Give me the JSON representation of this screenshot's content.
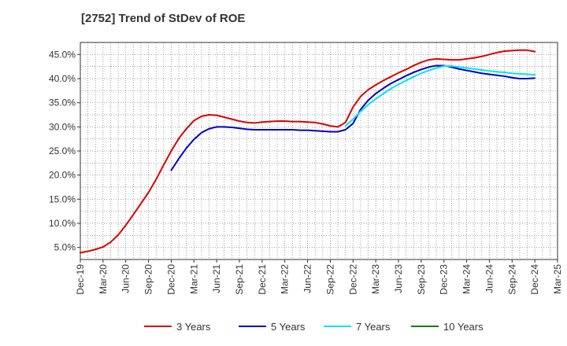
{
  "chart_data": {
    "type": "line",
    "title": "[2752]  Trend of StDev of ROE",
    "xlabel": "",
    "ylabel": "",
    "x_tick_labels": [
      "Dec-19",
      "Mar-20",
      "Jun-20",
      "Sep-20",
      "Dec-20",
      "Mar-21",
      "Jun-21",
      "Sep-21",
      "Dec-21",
      "Mar-22",
      "Jun-22",
      "Sep-22",
      "Dec-22",
      "Mar-23",
      "Jun-23",
      "Sep-23",
      "Dec-23",
      "Mar-24",
      "Jun-24",
      "Sep-24",
      "Dec-24",
      "Mar-25"
    ],
    "y_tick_labels": [
      "5.0%",
      "10.0%",
      "15.0%",
      "20.0%",
      "25.0%",
      "30.0%",
      "35.0%",
      "40.0%",
      "45.0%"
    ],
    "ylim": [
      2.5,
      47.5
    ],
    "grid": true,
    "legend_position": "bottom",
    "colors": {
      "3y": "#dd0000",
      "5y": "#0000cc",
      "7y": "#00e5ee",
      "10y": "#008000"
    },
    "series": [
      {
        "name": "3 Years",
        "color": "#dd0000",
        "points": [
          [
            "Dec-19",
            3.9
          ],
          [
            "Jan-20",
            4.2
          ],
          [
            "Feb-20",
            4.6
          ],
          [
            "Mar-20",
            5.1
          ],
          [
            "Apr-20",
            6.1
          ],
          [
            "May-20",
            7.6
          ],
          [
            "Jun-20",
            9.6
          ],
          [
            "Jul-20",
            11.8
          ],
          [
            "Aug-20",
            14.1
          ],
          [
            "Sep-20",
            16.4
          ],
          [
            "Oct-20",
            19.1
          ],
          [
            "Nov-20",
            22.1
          ],
          [
            "Dec-20",
            25.0
          ],
          [
            "Jan-21",
            27.6
          ],
          [
            "Feb-21",
            29.6
          ],
          [
            "Mar-21",
            31.3
          ],
          [
            "Apr-21",
            32.2
          ],
          [
            "May-21",
            32.5
          ],
          [
            "Jun-21",
            32.4
          ],
          [
            "Jul-21",
            32.0
          ],
          [
            "Aug-21",
            31.6
          ],
          [
            "Sep-21",
            31.2
          ],
          [
            "Oct-21",
            30.9
          ],
          [
            "Nov-21",
            30.8
          ],
          [
            "Dec-21",
            31.0
          ],
          [
            "Jan-22",
            31.1
          ],
          [
            "Feb-22",
            31.2
          ],
          [
            "Mar-22",
            31.2
          ],
          [
            "Apr-22",
            31.1
          ],
          [
            "May-22",
            31.1
          ],
          [
            "Jun-22",
            31.0
          ],
          [
            "Jul-22",
            30.9
          ],
          [
            "Aug-22",
            30.6
          ],
          [
            "Sep-22",
            30.2
          ],
          [
            "Oct-22",
            30.0
          ],
          [
            "Nov-22",
            30.9
          ],
          [
            "Dec-22",
            34.1
          ],
          [
            "Jan-23",
            36.3
          ],
          [
            "Feb-23",
            37.7
          ],
          [
            "Mar-23",
            38.7
          ],
          [
            "Apr-23",
            39.6
          ],
          [
            "May-23",
            40.4
          ],
          [
            "Jun-23",
            41.2
          ],
          [
            "Jul-23",
            41.9
          ],
          [
            "Aug-23",
            42.7
          ],
          [
            "Sep-23",
            43.4
          ],
          [
            "Oct-23",
            43.9
          ],
          [
            "Nov-23",
            44.1
          ],
          [
            "Dec-23",
            44.0
          ],
          [
            "Jan-24",
            43.9
          ],
          [
            "Feb-24",
            43.9
          ],
          [
            "Mar-24",
            44.1
          ],
          [
            "Apr-24",
            44.3
          ],
          [
            "May-24",
            44.6
          ],
          [
            "Jun-24",
            45.0
          ],
          [
            "Jul-24",
            45.4
          ],
          [
            "Aug-24",
            45.7
          ],
          [
            "Sep-24",
            45.8
          ],
          [
            "Oct-24",
            45.9
          ],
          [
            "Nov-24",
            45.9
          ],
          [
            "Dec-24",
            45.6
          ]
        ]
      },
      {
        "name": "5 Years",
        "color": "#0000cc",
        "points": [
          [
            "Dec-20",
            21.0
          ],
          [
            "Jan-21",
            23.4
          ],
          [
            "Feb-21",
            25.6
          ],
          [
            "Mar-21",
            27.4
          ],
          [
            "Apr-21",
            28.8
          ],
          [
            "May-21",
            29.6
          ],
          [
            "Jun-21",
            30.0
          ],
          [
            "Jul-21",
            30.0
          ],
          [
            "Aug-21",
            29.9
          ],
          [
            "Sep-21",
            29.7
          ],
          [
            "Oct-21",
            29.5
          ],
          [
            "Nov-21",
            29.4
          ],
          [
            "Dec-21",
            29.4
          ],
          [
            "Jan-22",
            29.4
          ],
          [
            "Feb-22",
            29.4
          ],
          [
            "Mar-22",
            29.4
          ],
          [
            "Apr-22",
            29.4
          ],
          [
            "May-22",
            29.3
          ],
          [
            "Jun-22",
            29.3
          ],
          [
            "Jul-22",
            29.2
          ],
          [
            "Aug-22",
            29.1
          ],
          [
            "Sep-22",
            29.0
          ],
          [
            "Oct-22",
            29.0
          ],
          [
            "Nov-22",
            29.4
          ],
          [
            "Dec-22",
            30.7
          ],
          [
            "Jan-23",
            33.6
          ],
          [
            "Feb-23",
            35.5
          ],
          [
            "Mar-23",
            36.9
          ],
          [
            "Apr-23",
            38.0
          ],
          [
            "May-23",
            39.0
          ],
          [
            "Jun-23",
            39.8
          ],
          [
            "Jul-23",
            40.6
          ],
          [
            "Aug-23",
            41.3
          ],
          [
            "Sep-23",
            41.9
          ],
          [
            "Oct-23",
            42.4
          ],
          [
            "Nov-23",
            42.7
          ],
          [
            "Dec-23",
            42.7
          ],
          [
            "Jan-24",
            42.4
          ],
          [
            "Feb-24",
            42.0
          ],
          [
            "Mar-24",
            41.7
          ],
          [
            "Apr-24",
            41.4
          ],
          [
            "May-24",
            41.1
          ],
          [
            "Jun-24",
            40.9
          ],
          [
            "Jul-24",
            40.7
          ],
          [
            "Aug-24",
            40.5
          ],
          [
            "Sep-24",
            40.2
          ],
          [
            "Oct-24",
            40.0
          ],
          [
            "Nov-24",
            40.0
          ],
          [
            "Dec-24",
            40.1
          ]
        ]
      },
      {
        "name": "7 Years",
        "color": "#00e5ee",
        "points": [
          [
            "Nov-22",
            30.2
          ],
          [
            "Dec-22",
            31.6
          ],
          [
            "Jan-23",
            33.2
          ],
          [
            "Feb-23",
            34.6
          ],
          [
            "Mar-23",
            35.8
          ],
          [
            "Apr-23",
            36.9
          ],
          [
            "May-23",
            37.9
          ],
          [
            "Jun-23",
            38.8
          ],
          [
            "Jul-23",
            39.6
          ],
          [
            "Aug-23",
            40.4
          ],
          [
            "Sep-23",
            41.1
          ],
          [
            "Oct-23",
            41.7
          ],
          [
            "Nov-23",
            42.2
          ],
          [
            "Dec-23",
            42.6
          ],
          [
            "Jan-24",
            42.6
          ],
          [
            "Feb-24",
            42.4
          ],
          [
            "Mar-24",
            42.2
          ],
          [
            "Apr-24",
            42.0
          ],
          [
            "May-24",
            41.8
          ],
          [
            "Jun-24",
            41.6
          ],
          [
            "Jul-24",
            41.4
          ],
          [
            "Aug-24",
            41.3
          ],
          [
            "Sep-24",
            41.1
          ],
          [
            "Oct-24",
            41.0
          ],
          [
            "Nov-24",
            40.9
          ],
          [
            "Dec-24",
            40.8
          ]
        ]
      },
      {
        "name": "10 Years",
        "color": "#008000",
        "points": []
      }
    ]
  }
}
